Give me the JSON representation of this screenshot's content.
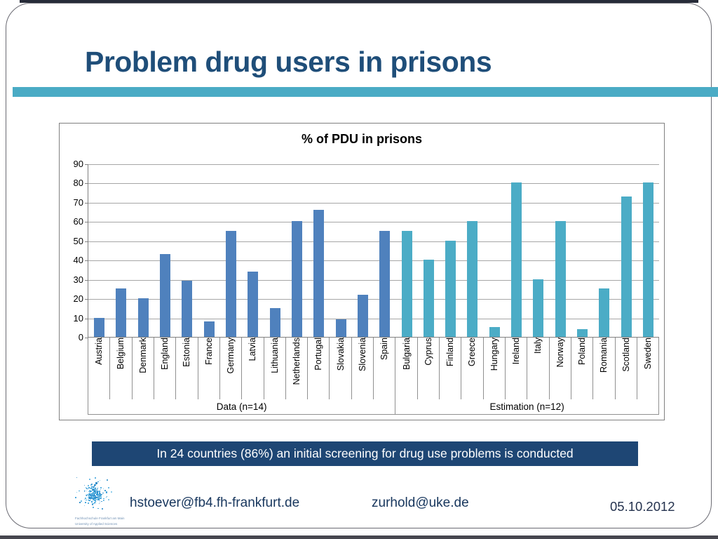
{
  "slide": {
    "title": "Problem drug users in prisons",
    "title_color": "#1f4e79",
    "accent_color": "#4aabc5"
  },
  "chart_data": {
    "type": "bar",
    "title": "% of PDU in prisons",
    "xlabel": "",
    "ylabel": "",
    "ylim": [
      0,
      90
    ],
    "ytick_step": 10,
    "grid": true,
    "legend_position": "none",
    "groups": [
      {
        "label": "Data (n=14)",
        "color": "#4f81bd",
        "categories": [
          "Austria",
          "Belgium",
          "Denmark",
          "England",
          "Estonia",
          "France",
          "Germany",
          "Latvia",
          "Lithuania",
          "Netherlands",
          "Portugal",
          "Slovakia",
          "Slovenia",
          "Spain"
        ],
        "values": [
          10,
          25,
          20,
          43,
          29,
          8,
          55,
          34,
          15,
          60,
          66,
          9,
          22,
          55
        ]
      },
      {
        "label": "Estimation (n=12)",
        "color": "#4bacc6",
        "categories": [
          "Bulgaria",
          "Cyprus",
          "Finland",
          "Greece",
          "Hungary",
          "Ireland",
          "Italy",
          "Norway",
          "Poland",
          "Romania",
          "Scotland",
          "Sweden"
        ],
        "values": [
          55,
          40,
          50,
          60,
          5,
          80,
          30,
          60,
          4,
          25,
          73,
          80
        ]
      }
    ]
  },
  "banner": {
    "text": "In 24 countries (86%) an initial screening for drug use problems is conducted",
    "bg_color": "#1e4674"
  },
  "footer": {
    "logo_caption_line1": "Fachhochschule Frankfurt am Main",
    "logo_caption_line2": "University of Applied Sciences",
    "email_left": "hstoever@fb4.fh-frankfurt.de",
    "email_right": "zurhold@uke.de",
    "date": "05.10.2012"
  }
}
